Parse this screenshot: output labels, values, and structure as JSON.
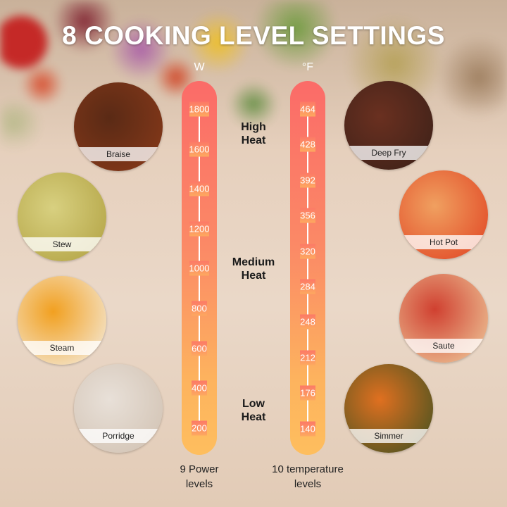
{
  "title": "8 COOKING LEVEL SETTINGS",
  "power": {
    "unit": "W",
    "ticks": [
      "1800",
      "1600",
      "1400",
      "1200",
      "1000",
      "800",
      "600",
      "400",
      "200"
    ],
    "footer": [
      "9 Power",
      "levels"
    ]
  },
  "temperature": {
    "unit": "°F",
    "ticks": [
      "464",
      "428",
      "392",
      "356",
      "320",
      "284",
      "248",
      "212",
      "176",
      "140"
    ],
    "footer": [
      "10 temperature",
      "levels"
    ]
  },
  "heat_levels": [
    {
      "line1": "High",
      "line2": "Heat"
    },
    {
      "line1": "Medium",
      "line2": "Heat"
    },
    {
      "line1": "Low",
      "line2": "Heat"
    }
  ],
  "dishes": [
    {
      "label": "Braise",
      "colors": [
        "#5a2a15",
        "#8a3a1a"
      ]
    },
    {
      "label": "Stew",
      "colors": [
        "#d8d080",
        "#b0a040"
      ]
    },
    {
      "label": "Steam",
      "colors": [
        "#f2a020",
        "#f4f0e8"
      ]
    },
    {
      "label": "Porridge",
      "colors": [
        "#e8e0d8",
        "#d0c0b0"
      ]
    },
    {
      "label": "Deep Fry",
      "colors": [
        "#6a3020",
        "#3a2018"
      ]
    },
    {
      "label": "Hot Pot",
      "colors": [
        "#f0a060",
        "#e04020"
      ]
    },
    {
      "label": "Saute",
      "colors": [
        "#d04030",
        "#f0d0a0"
      ]
    },
    {
      "label": "Simmer",
      "colors": [
        "#e07020",
        "#3a5020"
      ]
    }
  ],
  "colors": {
    "bar_top": "#fb6b68",
    "bar_bottom": "#febe5e"
  }
}
